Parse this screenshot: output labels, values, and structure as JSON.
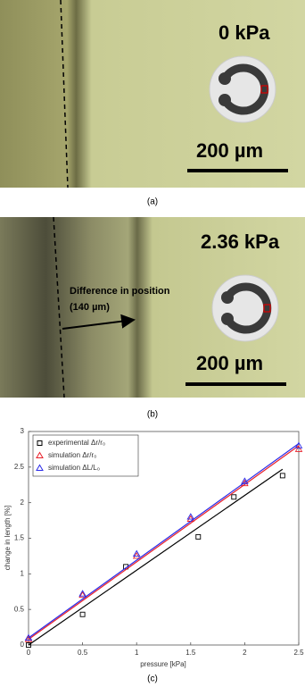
{
  "panel_a": {
    "pressure": "0 kPa",
    "scale_bar": "200 µm",
    "label": "(a)"
  },
  "panel_b": {
    "pressure": "2.36 kPa",
    "scale_bar": "200 µm",
    "annotation": "Difference in position",
    "annotation_value": "(140 µm)",
    "label": "(b)"
  },
  "chart_data": {
    "type": "scatter",
    "label": "(c)",
    "x_label": "pressure [kPa]",
    "y_label": "change in length [%]",
    "xlim": [
      0,
      2.5
    ],
    "xticks": [
      0,
      0.5,
      1,
      1.5,
      2,
      2.5
    ],
    "ylim": [
      0,
      3
    ],
    "yticks": [
      0,
      0.5,
      1,
      1.5,
      2,
      2.5,
      3
    ],
    "legend": "upper-left",
    "series": [
      {
        "name": "experimental Δr/r₀",
        "color": "#000000",
        "marker": "square",
        "x": [
          0,
          0.5,
          0.9,
          1.57,
          1.9,
          2.35
        ],
        "values": [
          0,
          0.43,
          1.1,
          1.52,
          2.08,
          2.38
        ],
        "line_x": [
          0,
          2.35
        ],
        "line_values": [
          0,
          2.47
        ]
      },
      {
        "name": "simulation Δr/r₀",
        "color": "#e8202a",
        "marker": "triangle",
        "x": [
          0,
          0.5,
          1,
          1.5,
          2,
          2.5
        ],
        "values": [
          0.08,
          0.7,
          1.25,
          1.77,
          2.27,
          2.75
        ],
        "line_x": [
          0,
          2.5
        ],
        "line_values": [
          0.08,
          2.8
        ]
      },
      {
        "name": "simulation ΔL/L₀",
        "color": "#2a2ae8",
        "marker": "triangle",
        "x": [
          0,
          0.5,
          1,
          1.5,
          2,
          2.5
        ],
        "values": [
          0.1,
          0.72,
          1.28,
          1.8,
          2.3,
          2.8
        ],
        "line_x": [
          0,
          2.5
        ],
        "line_values": [
          0.1,
          2.83
        ]
      }
    ]
  }
}
